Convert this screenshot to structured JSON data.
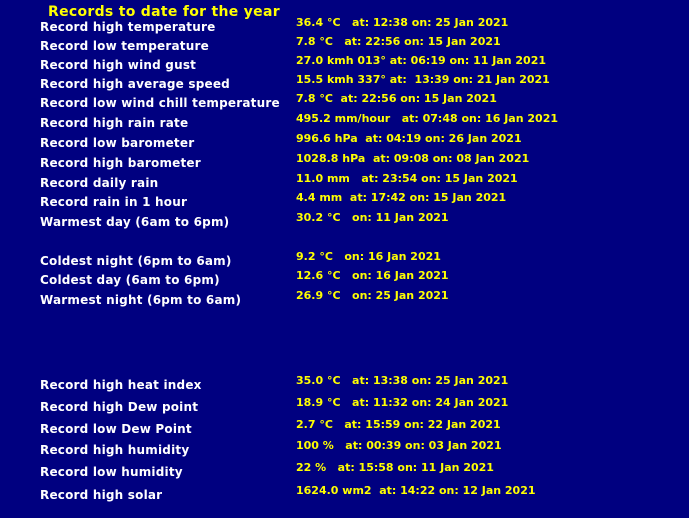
{
  "title": "Records to date for the year",
  "records": [
    {
      "label": "Record high temperature",
      "value": "36.4 °C   at: 12:38 on: 25 Jan 2021"
    },
    {
      "label": "Record low temperature",
      "value": "7.8 °C   at: 22:56 on: 15 Jan 2021"
    },
    {
      "label": "Record high wind gust",
      "value": "27.0 kmh 013° at: 06:19 on: 11 Jan 2021"
    },
    {
      "label": "Record high average speed",
      "value": "15.5 kmh 337° at:  13:39 on: 21 Jan 2021"
    },
    {
      "label": "Record low wind chill temperature",
      "value": "7.8 °C  at: 22:56 on: 15 Jan 2021"
    },
    {
      "label": "Record high rain rate",
      "value": "495.2 mm/hour   at: 07:48 on: 16 Jan 2021"
    },
    {
      "label": "Record low barometer",
      "value": "996.6 hPa  at: 04:19 on: 26 Jan 2021"
    },
    {
      "label": "Record high barometer",
      "value": "1028.8 hPa  at: 09:08 on: 08 Jan 2021"
    },
    {
      "label": "Record daily rain",
      "value": "11.0 mm   at: 23:54 on: 15 Jan 2021"
    },
    {
      "label": "Record rain in 1 hour",
      "value": "4.4 mm  at: 17:42 on: 15 Jan 2021"
    },
    {
      "label": "Warmest day (6am to 6pm)",
      "value": "30.2 °C   on: 11 Jan 2021"
    },
    {
      "label": "Coldest night (6pm to 6am)",
      "value": "9.2 °C   on: 16 Jan 2021"
    },
    {
      "label": "Coldest day (6am to 6pm)",
      "value": "12.6 °C   on: 16 Jan 2021"
    },
    {
      "label": "Warmest night (6pm to 6am)",
      "value": "26.9 °C   on: 25 Jan 2021"
    },
    {
      "label": "Record high heat index",
      "value": "35.0 °C   at: 13:38 on: 25 Jan 2021"
    },
    {
      "label": "Record high Dew point",
      "value": "18.9 °C   at: 11:32 on: 24 Jan 2021"
    },
    {
      "label": "Record low Dew Point",
      "value": "2.7 °C   at: 15:59 on: 22 Jan 2021"
    },
    {
      "label": "Record high humidity",
      "value": "100 %   at: 00:39 on: 03 Jan 2021"
    },
    {
      "label": "Record low humidity",
      "value": "22 %   at: 15:58 on: 11 Jan 2021"
    },
    {
      "label": "Record high solar",
      "value": "1624.0 wm2  at: 14:22 on: 12 Jan 2021"
    }
  ]
}
